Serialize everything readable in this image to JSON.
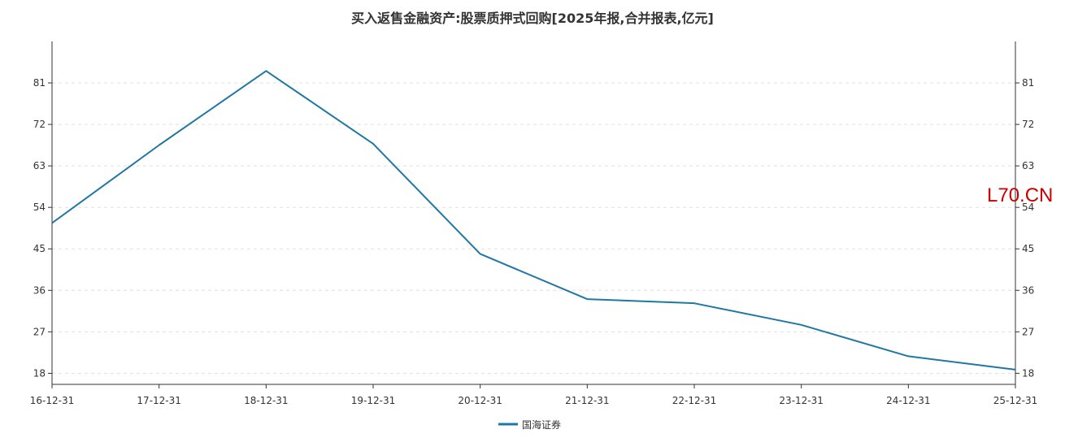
{
  "chart_data": {
    "type": "line",
    "title": "买入返售金融资产:股票质押式回购[2025年报,合并报表,亿元]",
    "categories": [
      "16-12-31",
      "17-12-31",
      "18-12-31",
      "19-12-31",
      "20-12-31",
      "21-12-31",
      "22-12-31",
      "23-12-31",
      "24-12-31",
      "25-12-31"
    ],
    "series": [
      {
        "name": "国海证券",
        "color": "#1f77a4",
        "values": [
          50.6,
          67.5,
          83.6,
          67.8,
          43.9,
          34.1,
          33.2,
          28.5,
          21.7,
          18.8
        ]
      }
    ],
    "yticks": [
      18,
      27,
      36,
      45,
      54,
      63,
      72,
      81
    ],
    "ylim": [
      15.6,
      90
    ],
    "grid": true,
    "legend_position": "bottom-center",
    "watermark": "L70.CN"
  }
}
